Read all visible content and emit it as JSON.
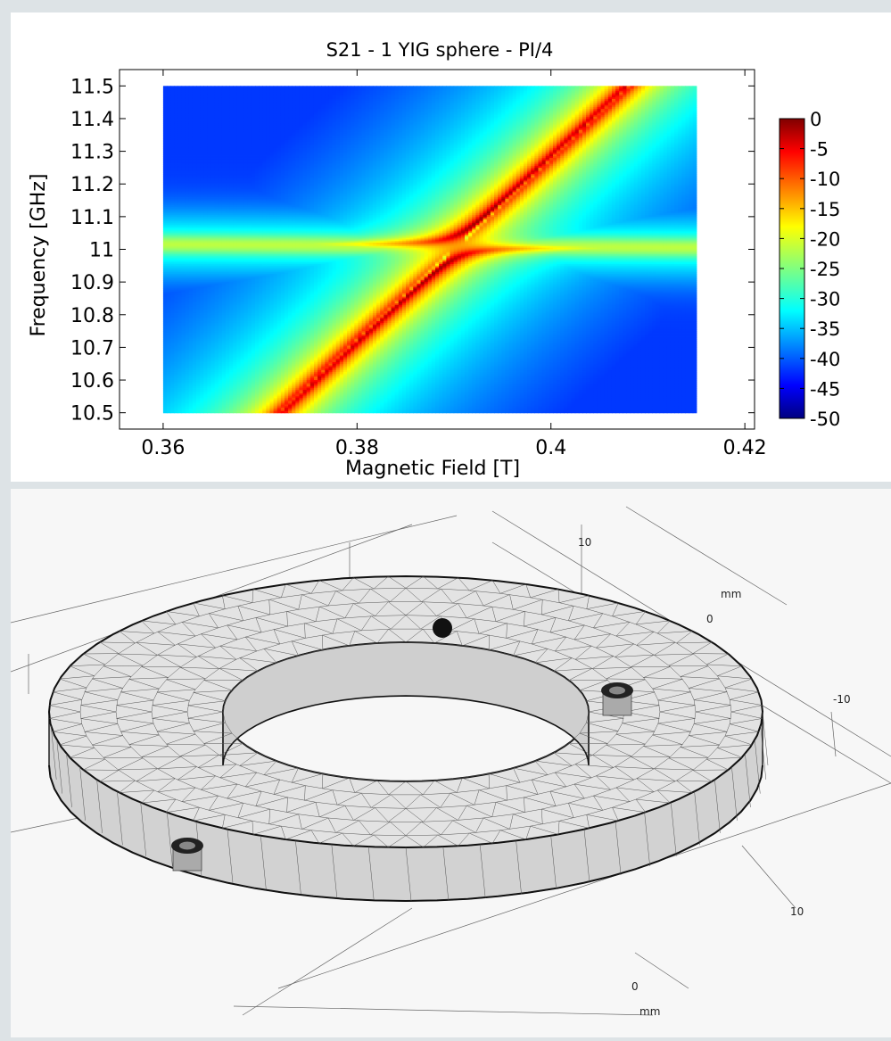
{
  "chart_data": {
    "type": "heatmap",
    "title": "S21 - 1 YIG sphere - PI/4",
    "xlabel": "Magnetic Field [T]",
    "ylabel": "Frequency [GHz]",
    "x_ticks": [
      "0.36",
      "0.38",
      "0.4",
      "0.42"
    ],
    "x_tick_values": [
      0.36,
      0.38,
      0.4,
      0.42
    ],
    "y_ticks": [
      "10.5",
      "10.6",
      "10.7",
      "10.8",
      "10.9",
      "11",
      "11.1",
      "11.2",
      "11.3",
      "11.4",
      "11.5"
    ],
    "y_tick_values": [
      10.5,
      10.6,
      10.7,
      10.8,
      10.9,
      11.0,
      11.1,
      11.2,
      11.3,
      11.4,
      11.5
    ],
    "xlim": [
      0.3555,
      0.421
    ],
    "ylim": [
      10.45,
      11.55
    ],
    "data_x_range": [
      0.36,
      0.415
    ],
    "data_y_range": [
      10.5,
      11.5
    ],
    "colorbar": {
      "labels": [
        "0",
        "-5",
        "-10",
        "-15",
        "-20",
        "-25",
        "-30",
        "-35",
        "-40",
        "-45",
        "-50"
      ],
      "values": [
        0,
        -5,
        -10,
        -15,
        -20,
        -25,
        -30,
        -35,
        -40,
        -45,
        -50
      ],
      "range": [
        -50,
        0
      ],
      "colormap": "jet"
    },
    "features": {
      "cavity_mode_frequency_left": 11.015,
      "cavity_mode_frequency_right": 11.005,
      "magnon_line": [
        [
          0.372,
          10.5
        ],
        [
          0.408,
          11.5
        ]
      ],
      "anticrossing_field": 0.3885,
      "anticrossing_frequency": 11.01
    }
  },
  "mesh_view": {
    "axis_labels": [
      "10",
      "mm",
      "0",
      "-10",
      "10",
      "0",
      "mm"
    ]
  }
}
